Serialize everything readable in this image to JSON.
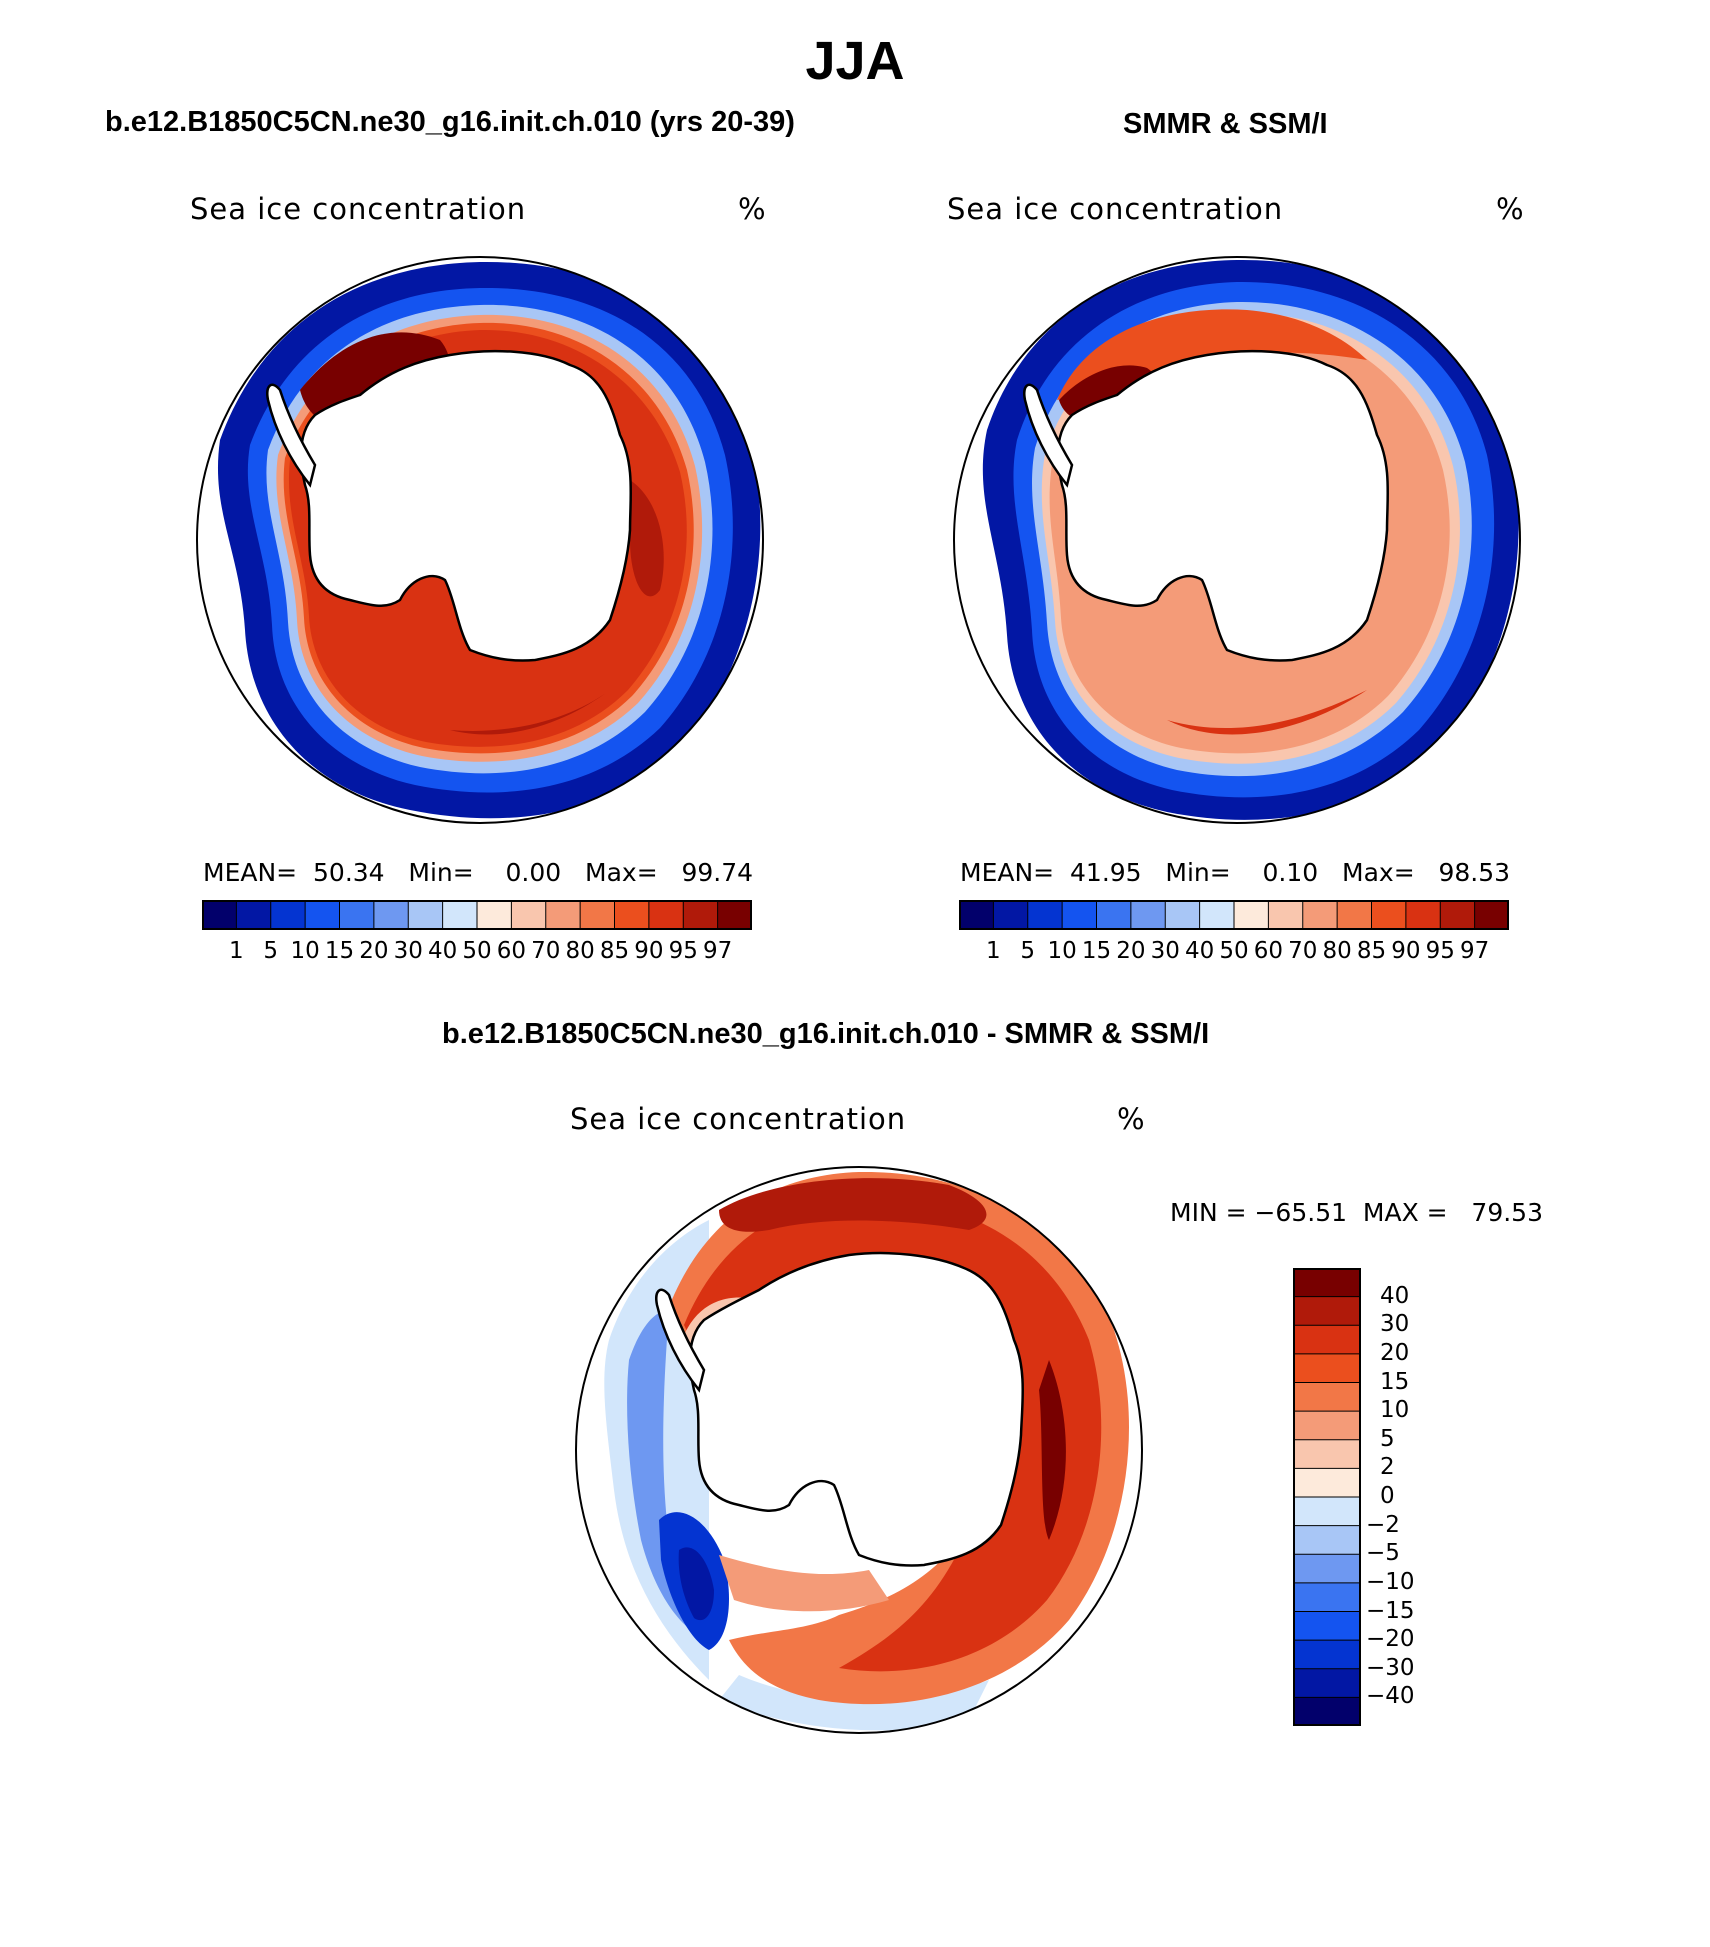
{
  "page": {
    "title": "JJA"
  },
  "colors": {
    "conc_scale": [
      "#02006b",
      "#0217a4",
      "#0434d1",
      "#1454f0",
      "#3a74f1",
      "#6e98f1",
      "#a8c6f6",
      "#d2e6fb",
      "#fdeadb",
      "#f9c6ae",
      "#f49b78",
      "#f27747",
      "#eb4f1e",
      "#d93212",
      "#b01a0a",
      "#780000"
    ],
    "diff_scale": [
      "#02006b",
      "#0217a4",
      "#0434d1",
      "#1454f0",
      "#3a74f1",
      "#6e98f1",
      "#a8c6f6",
      "#d2e6fb",
      "#fdeadb",
      "#f9c6ae",
      "#f49b78",
      "#f27747",
      "#eb4f1e",
      "#d93212",
      "#b01a0a",
      "#780000"
    ],
    "land": "#ffffff",
    "coast": "#000000"
  },
  "panel_model": {
    "title": "b.e12.B1850C5CN.ne30_g16.init.ch.010 (yrs 20-39)",
    "field": "Sea ice concentration",
    "units": "%",
    "stats_text": "MEAN=  50.34   Min=    0.00   Max=   99.74",
    "mean": 50.34,
    "min": 0.0,
    "max": 99.74,
    "cbar_levels": [
      "1",
      "5",
      "10",
      "15",
      "20",
      "30",
      "40",
      "50",
      "60",
      "70",
      "80",
      "85",
      "90",
      "95",
      "97"
    ]
  },
  "panel_obs": {
    "title": "SMMR & SSM/I",
    "field": "Sea ice concentration",
    "units": "%",
    "stats_text": "MEAN=  41.95   Min=    0.10   Max=   98.53",
    "mean": 41.95,
    "min": 0.1,
    "max": 98.53,
    "cbar_levels": [
      "1",
      "5",
      "10",
      "15",
      "20",
      "30",
      "40",
      "50",
      "60",
      "70",
      "80",
      "85",
      "90",
      "95",
      "97"
    ]
  },
  "panel_diff": {
    "title": "b.e12.B1850C5CN.ne30_g16.init.ch.010 - SMMR & SSM/I",
    "field": "Sea ice concentration",
    "units": "%",
    "minmax_text": "MIN = −65.51  MAX =   79.53",
    "min": -65.51,
    "max": 79.53,
    "cbar_levels": [
      "40",
      "30",
      "20",
      "15",
      "10",
      "5",
      "2",
      "0",
      "−2",
      "−5",
      "−10",
      "−15",
      "−20",
      "−30",
      "−40"
    ]
  }
}
